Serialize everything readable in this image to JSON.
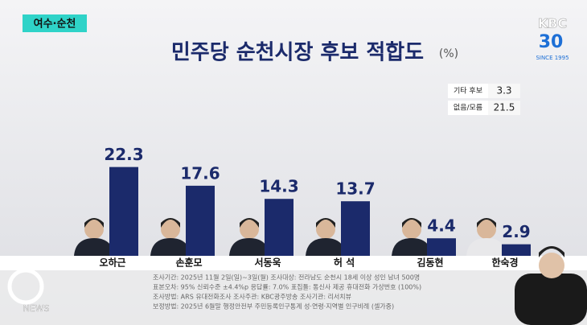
{
  "region_tag": "여수·순천",
  "logo": {
    "brand": "KBC",
    "anniversary": "30",
    "since": "SINCE 1995"
  },
  "corner_logo": "NEWS",
  "chart_data": {
    "type": "bar",
    "title": "민주당 순천시장 후보 적합도",
    "unit": "(%)",
    "categories": [
      "오하근",
      "손훈모",
      "서동욱",
      "허 석",
      "김동현",
      "한숙경"
    ],
    "values": [
      22.3,
      17.6,
      14.3,
      13.7,
      4.4,
      2.9
    ],
    "color": "#1b2a6b"
  },
  "side_table": [
    {
      "label": "기타 후보",
      "value": 3.3
    },
    {
      "label": "없음/모름",
      "value": 21.5
    }
  ],
  "footnotes": [
    "조사기간: 2025년 11월 2일(일)~3일(월)   조사대상: 전라남도 순천시 18세 이상 성인 남녀 500명",
    "표본오차: 95% 신뢰수준 ±4.4%p   응답률: 7.0%   표집틀: 통신사 제공 휴대전화 가상번호 (100%)",
    "조사방법: ARS 유대전화조사   조사주관: KBC광주방송   조사기관: 리서치뷰",
    "보정방법: 2025년 6월말 행정안전부 주민등록인구통계 성·연령·지역별 인구비례 (셀가중)"
  ]
}
